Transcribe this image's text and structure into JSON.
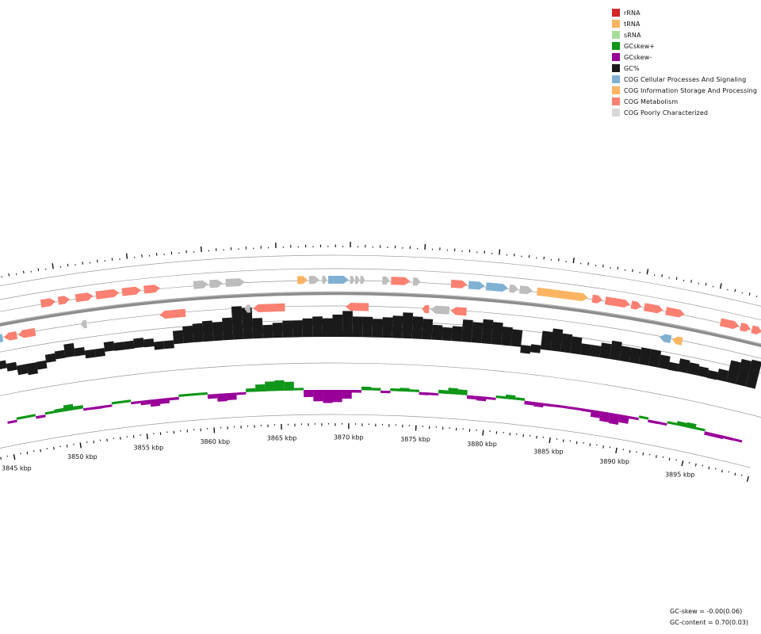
{
  "legend": {
    "items": [
      {
        "label": "rRNA",
        "color": "#d62728"
      },
      {
        "label": "tRNA",
        "color": "#fdb462"
      },
      {
        "label": "sRNA",
        "color": "#a9dc9c"
      },
      {
        "label": "GCskew+",
        "color": "#109618"
      },
      {
        "label": "GCskew-",
        "color": "#990099"
      },
      {
        "label": "GC%",
        "color": "#1a1a1a"
      },
      {
        "label": "COG Cellular Processes And Signaling",
        "color": "#80b1d3"
      },
      {
        "label": "COG Information Storage And Processing",
        "color": "#fdb462"
      },
      {
        "label": "COG Metabolism",
        "color": "#fa8072"
      },
      {
        "label": "COG Poorly Characterized",
        "color": "#d9d9d9"
      }
    ]
  },
  "stats": {
    "gc_skew": "GC-skew = -0.00(0.06)",
    "gc_content": "GC-content = 0.70(0.03)"
  },
  "scale": {
    "ticks": [
      {
        "label": "3845 kbp",
        "pos": 3845
      },
      {
        "label": "3850 kbp",
        "pos": 3850
      },
      {
        "label": "3855 kbp",
        "pos": 3855
      },
      {
        "label": "3860 kbp",
        "pos": 3860
      },
      {
        "label": "3865 kbp",
        "pos": 3865
      },
      {
        "label": "3870 kbp",
        "pos": 3870
      },
      {
        "label": "3875 kbp",
        "pos": 3875
      },
      {
        "label": "3880 kbp",
        "pos": 3880
      },
      {
        "label": "3885 kbp",
        "pos": 3885
      },
      {
        "label": "3890 kbp",
        "pos": 3890
      },
      {
        "label": "3895 kbp",
        "pos": 3895
      }
    ]
  },
  "features": {
    "forward": [
      {
        "start": 3848.8,
        "end": 3849.8,
        "cog": "metabolism"
      },
      {
        "start": 3850.0,
        "end": 3850.8,
        "cog": "metabolism"
      },
      {
        "start": 3851.2,
        "end": 3852.4,
        "cog": "metabolism"
      },
      {
        "start": 3852.6,
        "end": 3854.2,
        "cog": "metabolism"
      },
      {
        "start": 3854.4,
        "end": 3855.7,
        "cog": "metabolism"
      },
      {
        "start": 3855.9,
        "end": 3857.0,
        "cog": "metabolism"
      },
      {
        "start": 3859.3,
        "end": 3860.3,
        "cog": "poorly"
      },
      {
        "start": 3860.4,
        "end": 3861.3,
        "cog": "poorly"
      },
      {
        "start": 3861.5,
        "end": 3862.8,
        "cog": "poorly"
      },
      {
        "start": 3866.4,
        "end": 3867.1,
        "cog": "information"
      },
      {
        "start": 3867.2,
        "end": 3867.9,
        "cog": "poorly"
      },
      {
        "start": 3868.1,
        "end": 3868.4,
        "cog": "poorly"
      },
      {
        "start": 3868.5,
        "end": 3869.9,
        "cog": "cellular"
      },
      {
        "start": 3870.0,
        "end": 3870.3,
        "cog": "poorly"
      },
      {
        "start": 3870.35,
        "end": 3870.65,
        "cog": "poorly"
      },
      {
        "start": 3870.7,
        "end": 3871.0,
        "cog": "poorly"
      },
      {
        "start": 3872.2,
        "end": 3872.7,
        "cog": "poorly"
      },
      {
        "start": 3872.8,
        "end": 3874.1,
        "cog": "metabolism"
      },
      {
        "start": 3874.3,
        "end": 3874.8,
        "cog": "poorly"
      },
      {
        "start": 3876.9,
        "end": 3878.0,
        "cog": "metabolism"
      },
      {
        "start": 3878.1,
        "end": 3879.2,
        "cog": "cellular"
      },
      {
        "start": 3879.3,
        "end": 3880.8,
        "cog": "cellular"
      },
      {
        "start": 3880.9,
        "end": 3881.5,
        "cog": "poorly"
      },
      {
        "start": 3881.6,
        "end": 3882.5,
        "cog": "poorly"
      },
      {
        "start": 3882.8,
        "end": 3886.3,
        "cog": "information"
      },
      {
        "start": 3886.6,
        "end": 3887.3,
        "cog": "metabolism"
      },
      {
        "start": 3887.5,
        "end": 3889.2,
        "cog": "metabolism"
      },
      {
        "start": 3889.3,
        "end": 3890.0,
        "cog": "metabolism"
      },
      {
        "start": 3890.2,
        "end": 3891.5,
        "cog": "metabolism"
      },
      {
        "start": 3891.7,
        "end": 3893.0,
        "cog": "metabolism"
      },
      {
        "start": 3895.5,
        "end": 3896.8,
        "cog": "metabolism"
      },
      {
        "start": 3896.9,
        "end": 3897.6,
        "cog": "metabolism"
      },
      {
        "start": 3897.7,
        "end": 3898.4,
        "cog": "metabolism"
      }
    ],
    "reverse": [
      {
        "start": 3845.0,
        "end": 3845.8,
        "cog": "cellular"
      },
      {
        "start": 3845.9,
        "end": 3846.8,
        "cog": "metabolism"
      },
      {
        "start": 3846.9,
        "end": 3848.1,
        "cog": "metabolism"
      },
      {
        "start": 3851.3,
        "end": 3851.7,
        "cog": "poorly"
      },
      {
        "start": 3856.8,
        "end": 3858.6,
        "cog": "metabolism"
      },
      {
        "start": 3862.7,
        "end": 3863.1,
        "cog": "poorly"
      },
      {
        "start": 3863.3,
        "end": 3865.5,
        "cog": "metabolism"
      },
      {
        "start": 3869.7,
        "end": 3871.3,
        "cog": "metabolism"
      },
      {
        "start": 3875.0,
        "end": 3875.5,
        "cog": "metabolism"
      },
      {
        "start": 3875.6,
        "end": 3876.9,
        "cog": "poorly"
      },
      {
        "start": 3877.0,
        "end": 3878.1,
        "cog": "metabolism"
      },
      {
        "start": 3891.6,
        "end": 3892.4,
        "cog": "cellular"
      },
      {
        "start": 3892.5,
        "end": 3893.2,
        "cog": "information"
      }
    ]
  },
  "gc_content": [
    [
      3845.0,
      0.72
    ],
    [
      3845.7,
      0.7
    ],
    [
      3846.4,
      0.67
    ],
    [
      3847.1,
      0.66
    ],
    [
      3847.8,
      0.68
    ],
    [
      3848.5,
      0.71
    ],
    [
      3849.2,
      0.72
    ],
    [
      3849.9,
      0.75
    ],
    [
      3850.6,
      0.72
    ],
    [
      3851.3,
      0.7
    ],
    [
      3852.0,
      0.7
    ],
    [
      3852.7,
      0.73
    ],
    [
      3853.4,
      0.72
    ],
    [
      3854.1,
      0.72
    ],
    [
      3854.8,
      0.73
    ],
    [
      3855.5,
      0.72
    ],
    [
      3856.2,
      0.7
    ],
    [
      3856.9,
      0.7
    ],
    [
      3857.6,
      0.75
    ],
    [
      3858.3,
      0.77
    ],
    [
      3859.0,
      0.78
    ],
    [
      3859.7,
      0.79
    ],
    [
      3860.4,
      0.78
    ],
    [
      3861.1,
      0.8
    ],
    [
      3861.8,
      0.86
    ],
    [
      3862.5,
      0.85
    ],
    [
      3863.2,
      0.79
    ],
    [
      3863.9,
      0.75
    ],
    [
      3864.6,
      0.76
    ],
    [
      3865.3,
      0.77
    ],
    [
      3866.0,
      0.77
    ],
    [
      3866.7,
      0.78
    ],
    [
      3867.4,
      0.79
    ],
    [
      3868.1,
      0.78
    ],
    [
      3868.8,
      0.8
    ],
    [
      3869.5,
      0.82
    ],
    [
      3870.2,
      0.79
    ],
    [
      3870.9,
      0.79
    ],
    [
      3871.6,
      0.78
    ],
    [
      3872.3,
      0.79
    ],
    [
      3873.0,
      0.8
    ],
    [
      3873.7,
      0.82
    ],
    [
      3874.4,
      0.8
    ],
    [
      3875.1,
      0.79
    ],
    [
      3875.8,
      0.76
    ],
    [
      3876.5,
      0.75
    ],
    [
      3877.2,
      0.76
    ],
    [
      3877.9,
      0.8
    ],
    [
      3878.6,
      0.79
    ],
    [
      3879.3,
      0.81
    ],
    [
      3880.0,
      0.8
    ],
    [
      3880.7,
      0.78
    ],
    [
      3881.4,
      0.77
    ],
    [
      3882.1,
      0.69
    ],
    [
      3882.8,
      0.7
    ],
    [
      3883.5,
      0.78
    ],
    [
      3884.2,
      0.8
    ],
    [
      3884.9,
      0.78
    ],
    [
      3885.6,
      0.77
    ],
    [
      3886.3,
      0.74
    ],
    [
      3887.0,
      0.74
    ],
    [
      3887.7,
      0.76
    ],
    [
      3888.4,
      0.78
    ],
    [
      3889.1,
      0.76
    ],
    [
      3889.8,
      0.76
    ],
    [
      3890.5,
      0.77
    ],
    [
      3891.2,
      0.77
    ],
    [
      3891.9,
      0.75
    ],
    [
      3892.6,
      0.72
    ],
    [
      3893.3,
      0.75
    ],
    [
      3894.0,
      0.74
    ],
    [
      3894.7,
      0.73
    ],
    [
      3895.4,
      0.72
    ],
    [
      3896.1,
      0.74
    ],
    [
      3896.8,
      0.8
    ],
    [
      3897.5,
      0.82
    ],
    [
      3898.2,
      0.83
    ],
    [
      3898.9,
      0.84
    ]
  ],
  "gc_skew": [
    [
      3845.0,
      -0.02
    ],
    [
      3845.7,
      0.02
    ],
    [
      3846.4,
      0.01
    ],
    [
      3847.1,
      -0.03
    ],
    [
      3847.8,
      0.02
    ],
    [
      3848.5,
      0.04
    ],
    [
      3849.2,
      0.07
    ],
    [
      3849.9,
      0.04
    ],
    [
      3850.6,
      -0.02
    ],
    [
      3851.3,
      -0.03
    ],
    [
      3852.0,
      -0.02
    ],
    [
      3852.7,
      0.01
    ],
    [
      3853.4,
      0.01
    ],
    [
      3854.1,
      -0.02
    ],
    [
      3854.8,
      -0.05
    ],
    [
      3855.5,
      -0.08
    ],
    [
      3856.2,
      -0.06
    ],
    [
      3856.9,
      -0.03
    ],
    [
      3857.6,
      0.01
    ],
    [
      3858.3,
      0.02
    ],
    [
      3859.0,
      0.02
    ],
    [
      3859.7,
      -0.05
    ],
    [
      3860.4,
      -0.09
    ],
    [
      3861.1,
      -0.08
    ],
    [
      3861.8,
      -0.02
    ],
    [
      3862.5,
      0.04
    ],
    [
      3863.2,
      0.08
    ],
    [
      3863.9,
      0.11
    ],
    [
      3864.6,
      0.12
    ],
    [
      3865.3,
      0.1
    ],
    [
      3866.0,
      0.02
    ],
    [
      3866.7,
      -0.08
    ],
    [
      3867.4,
      -0.13
    ],
    [
      3868.1,
      -0.15
    ],
    [
      3868.8,
      -0.14
    ],
    [
      3869.5,
      -0.1
    ],
    [
      3870.2,
      -0.03
    ],
    [
      3870.9,
      0.04
    ],
    [
      3871.6,
      0.03
    ],
    [
      3872.3,
      -0.02
    ],
    [
      3873.0,
      0.03
    ],
    [
      3873.7,
      0.04
    ],
    [
      3874.4,
      0.02
    ],
    [
      3875.1,
      -0.03
    ],
    [
      3875.8,
      -0.02
    ],
    [
      3876.5,
      0.04
    ],
    [
      3877.2,
      0.07
    ],
    [
      3877.9,
      0.06
    ],
    [
      3878.6,
      -0.04
    ],
    [
      3879.3,
      -0.05
    ],
    [
      3880.0,
      -0.02
    ],
    [
      3880.7,
      0.02
    ],
    [
      3881.4,
      0.05
    ],
    [
      3882.1,
      0.03
    ],
    [
      3882.8,
      -0.04
    ],
    [
      3883.5,
      -0.05
    ],
    [
      3884.2,
      -0.03
    ],
    [
      3884.9,
      -0.02
    ],
    [
      3885.6,
      -0.01
    ],
    [
      3886.3,
      -0.01
    ],
    [
      3887.0,
      -0.03
    ],
    [
      3887.7,
      -0.08
    ],
    [
      3888.4,
      -0.11
    ],
    [
      3889.1,
      -0.12
    ],
    [
      3889.8,
      -0.09
    ],
    [
      3890.5,
      -0.02
    ],
    [
      3891.2,
      0.01
    ],
    [
      3891.9,
      -0.03
    ],
    [
      3892.6,
      -0.02
    ],
    [
      3893.3,
      0.02
    ],
    [
      3894.0,
      0.05
    ],
    [
      3894.7,
      0.06
    ],
    [
      3895.4,
      0.01
    ],
    [
      3896.1,
      -0.04
    ],
    [
      3896.8,
      -0.04
    ],
    [
      3897.5,
      -0.03
    ],
    [
      3898.2,
      -0.02
    ],
    [
      3898.9,
      -0.03
    ]
  ]
}
